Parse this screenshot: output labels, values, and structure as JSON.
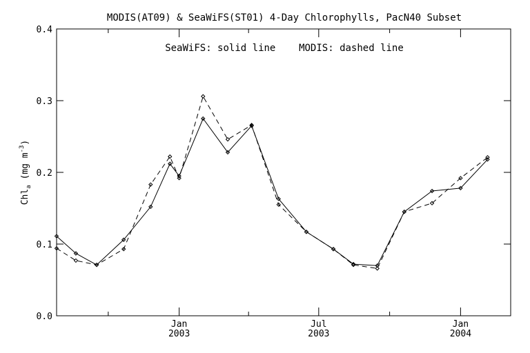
{
  "chart_data": {
    "type": "line",
    "title": "MODIS(AT09) & SeaWiFS(ST01) 4-Day Chlorophylls, PacN40 Subset",
    "annotation": "SeaWiFS: solid line    MODIS: dashed line",
    "ylabel_main": "Chl",
    "ylabel_sub": "a",
    "ylabel_unit": "(mg m",
    "ylabel_sup": "-3",
    "ylabel_close": ")",
    "xlabel": "",
    "ylim": [
      0.0,
      0.4
    ],
    "y_ticks": [
      0.0,
      0.1,
      0.2,
      0.3,
      0.4
    ],
    "y_tick_labels": [
      "0.0",
      "0.1",
      "0.2",
      "0.3",
      "0.4"
    ],
    "xlim": [
      "2002-07-26",
      "2004-03-06"
    ],
    "x_minor_ticks": [
      "2002-10-01",
      "2003-04-01",
      "2003-10-01"
    ],
    "x_major_ticks": [
      {
        "date": "2003-01-01",
        "label1": "Jan",
        "label2": "2003"
      },
      {
        "date": "2003-07-01",
        "label1": "Jul",
        "label2": "2003"
      },
      {
        "date": "2004-01-01",
        "label1": "Jan",
        "label2": "2004"
      }
    ],
    "grid": false,
    "series": [
      {
        "name": "SeaWiFS",
        "style": "solid",
        "color": "#000000",
        "points": [
          {
            "x": "2002-07-26",
            "y": 0.111
          },
          {
            "x": "2002-08-20",
            "y": 0.087
          },
          {
            "x": "2002-09-16",
            "y": 0.071
          },
          {
            "x": "2002-10-21",
            "y": 0.106
          },
          {
            "x": "2002-11-25",
            "y": 0.152
          },
          {
            "x": "2002-12-20",
            "y": 0.212
          },
          {
            "x": "2003-01-01",
            "y": 0.195
          },
          {
            "x": "2003-02-01",
            "y": 0.275
          },
          {
            "x": "2003-03-05",
            "y": 0.228
          },
          {
            "x": "2003-04-05",
            "y": 0.265
          },
          {
            "x": "2003-05-10",
            "y": 0.163
          },
          {
            "x": "2003-06-15",
            "y": 0.117
          },
          {
            "x": "2003-07-20",
            "y": 0.093
          },
          {
            "x": "2003-08-15",
            "y": 0.072
          },
          {
            "x": "2003-09-15",
            "y": 0.07
          },
          {
            "x": "2003-10-20",
            "y": 0.145
          },
          {
            "x": "2003-11-25",
            "y": 0.174
          },
          {
            "x": "2004-01-01",
            "y": 0.178
          },
          {
            "x": "2004-02-05",
            "y": 0.218
          }
        ]
      },
      {
        "name": "MODIS",
        "style": "dashed",
        "color": "#000000",
        "points": [
          {
            "x": "2002-07-26",
            "y": 0.094
          },
          {
            "x": "2002-08-20",
            "y": 0.077
          },
          {
            "x": "2002-09-16",
            "y": 0.071
          },
          {
            "x": "2002-10-21",
            "y": 0.093
          },
          {
            "x": "2002-11-25",
            "y": 0.183
          },
          {
            "x": "2002-12-20",
            "y": 0.222
          },
          {
            "x": "2003-01-01",
            "y": 0.192
          },
          {
            "x": "2003-02-01",
            "y": 0.306
          },
          {
            "x": "2003-03-05",
            "y": 0.246
          },
          {
            "x": "2003-04-05",
            "y": 0.266
          },
          {
            "x": "2003-05-10",
            "y": 0.155
          },
          {
            "x": "2003-06-15",
            "y": 0.117
          },
          {
            "x": "2003-07-20",
            "y": 0.093
          },
          {
            "x": "2003-08-15",
            "y": 0.071
          },
          {
            "x": "2003-09-15",
            "y": 0.066
          },
          {
            "x": "2003-10-20",
            "y": 0.145
          },
          {
            "x": "2003-11-25",
            "y": 0.157
          },
          {
            "x": "2004-01-01",
            "y": 0.192
          },
          {
            "x": "2004-02-05",
            "y": 0.221
          }
        ]
      }
    ]
  }
}
